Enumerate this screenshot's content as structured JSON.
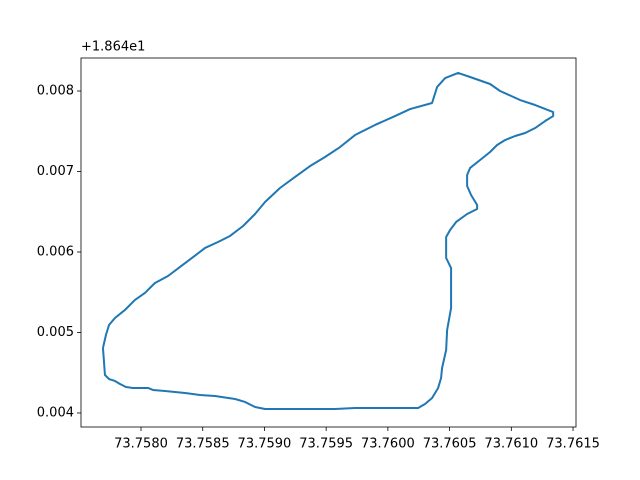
{
  "chart_data": {
    "type": "line",
    "y_offset_label": "+1.864e1",
    "color": "#1f77b4",
    "x": [
      73.757692,
      73.757708,
      73.757741,
      73.757789,
      73.75783,
      73.757878,
      73.757935,
      73.758057,
      73.758097,
      73.758194,
      73.758357,
      73.758478,
      73.7586,
      73.758762,
      73.758843,
      73.758924,
      73.759005,
      73.759288,
      73.759572,
      73.759734,
      73.759977,
      73.760245,
      73.760301,
      73.760358,
      73.760407,
      73.760431,
      73.760439,
      73.760472,
      73.76048,
      73.760512,
      73.760512,
      73.760472,
      73.760472,
      73.760504,
      73.760553,
      73.760642,
      73.760723,
      73.760723,
      73.760674,
      73.760642,
      73.760642,
      73.760666,
      73.760747,
      73.760828,
      73.760885,
      73.76095,
      73.761031,
      73.761112,
      73.761193,
      73.761274,
      73.761339,
      73.761339,
      73.761193,
      73.761071,
      73.760909,
      73.760828,
      73.760666,
      73.760569,
      73.760464,
      73.760399,
      73.760358,
      73.76018,
      73.760058,
      73.759896,
      73.759734,
      73.759613,
      73.759491,
      73.75937,
      73.759248,
      73.759126,
      73.759005,
      73.758924,
      73.758827,
      73.758721,
      73.758624,
      73.758519,
      73.758413,
      73.758316,
      73.758219,
      73.758113,
      73.758032,
      73.757951,
      73.75787,
      73.757789,
      73.757741,
      73.757716,
      73.757692
    ],
    "values": [
      0.004808,
      0.004472,
      0.004422,
      0.004398,
      0.00436,
      0.004323,
      0.004311,
      0.004311,
      0.004286,
      0.004273,
      0.004249,
      0.004224,
      0.004211,
      0.004174,
      0.004137,
      0.004075,
      0.00405,
      0.00405,
      0.00405,
      0.004062,
      0.004062,
      0.004062,
      0.004112,
      0.004186,
      0.004311,
      0.004435,
      0.004559,
      0.004783,
      0.005031,
      0.005304,
      0.005801,
      0.005926,
      0.006186,
      0.006273,
      0.006373,
      0.006472,
      0.006534,
      0.006584,
      0.006708,
      0.00682,
      0.006957,
      0.007044,
      0.007143,
      0.007242,
      0.007329,
      0.007391,
      0.007441,
      0.007478,
      0.00754,
      0.007627,
      0.007689,
      0.007739,
      0.007826,
      0.007888,
      0.008,
      0.008087,
      0.008174,
      0.008224,
      0.008161,
      0.00805,
      0.007851,
      0.007776,
      0.007689,
      0.007578,
      0.007453,
      0.007304,
      0.00718,
      0.007068,
      0.006932,
      0.006795,
      0.006621,
      0.006472,
      0.006323,
      0.006199,
      0.006124,
      0.00605,
      0.005926,
      0.005814,
      0.005702,
      0.005615,
      0.005491,
      0.005404,
      0.00528,
      0.00518,
      0.005093,
      0.004969,
      0.004808
    ],
    "xlim": [
      73.757514,
      73.761524
    ],
    "ylim": [
      0.003826,
      0.00841
    ],
    "xticks": [
      {
        "value": 73.758,
        "label": "73.7580"
      },
      73.7585,
      {
        "value": 73.759,
        "label": "73.7590"
      },
      73.7595,
      {
        "value": 73.76,
        "label": "73.7600"
      },
      73.7605,
      {
        "value": 73.761,
        "label": "73.7610"
      },
      73.7615
    ],
    "yticks": [
      0.004,
      0.005,
      0.006,
      0.007,
      0.008
    ]
  }
}
